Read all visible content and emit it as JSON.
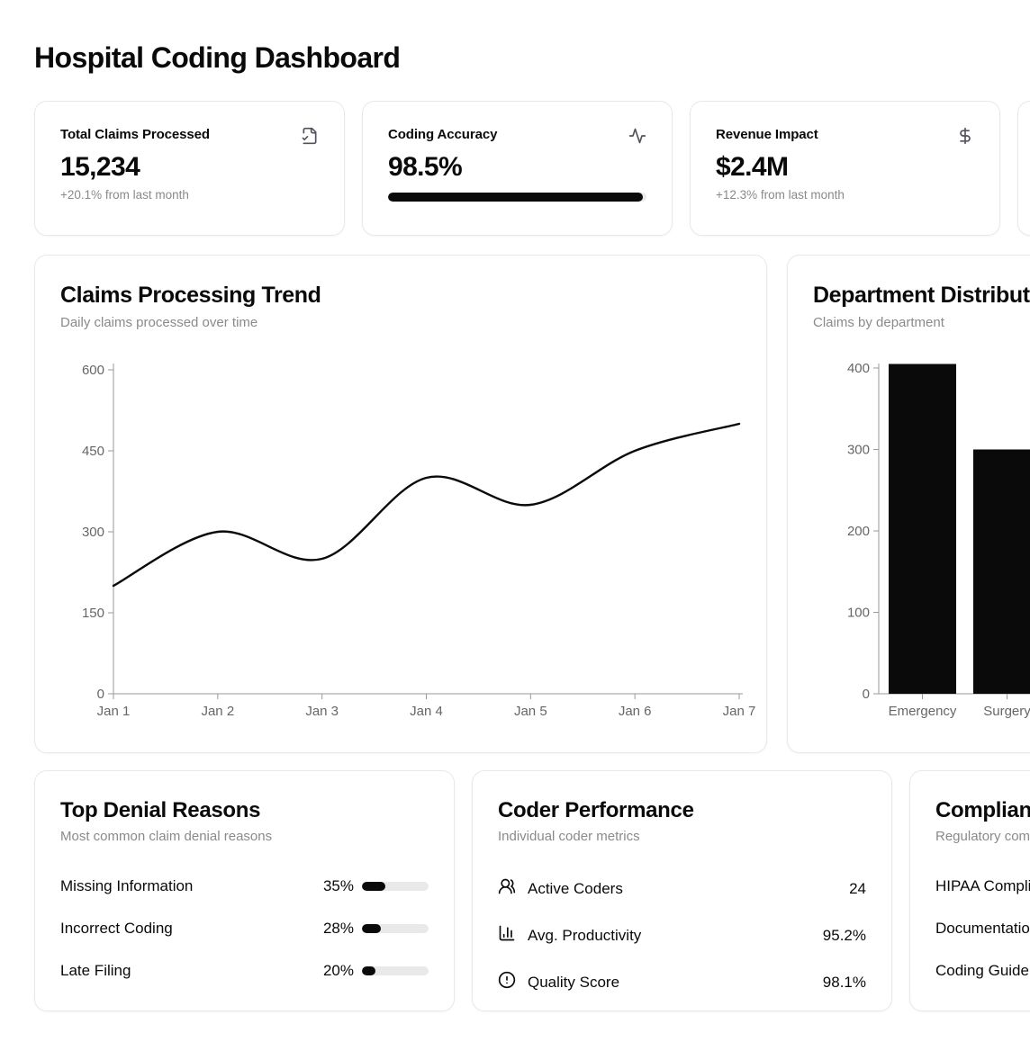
{
  "page": {
    "title": "Hospital Coding Dashboard"
  },
  "stats": [
    {
      "label": "Total Claims Processed",
      "icon": "file-check-icon",
      "value": "15,234",
      "note": "+20.1% from last month"
    },
    {
      "label": "Coding Accuracy",
      "icon": "activity-icon",
      "value": "98.5%",
      "progress_pct": 98.5
    },
    {
      "label": "Revenue Impact",
      "icon": "dollar-sign-icon",
      "value": "$2.4M",
      "note": "+12.3% from last month"
    },
    {
      "label": "",
      "icon": "",
      "value": "",
      "note": "",
      "clipped_at_right_edge": true
    }
  ],
  "chart_data": [
    {
      "type": "line",
      "title": "Claims Processing Trend",
      "subtitle": "Daily claims processed over time",
      "x": [
        "Jan 1",
        "Jan 2",
        "Jan 3",
        "Jan 4",
        "Jan 5",
        "Jan 6",
        "Jan 7"
      ],
      "values": [
        200,
        300,
        250,
        400,
        350,
        450,
        500
      ],
      "xlabel": "",
      "ylabel": "",
      "ylim": [
        0,
        610
      ],
      "yticks": [
        0,
        150,
        300,
        450,
        600
      ],
      "grid": false,
      "legend": false,
      "curve": "natural",
      "line_color": "#0a0a0a"
    },
    {
      "type": "bar",
      "title": "Department Distribution",
      "subtitle": "Claims by department",
      "categories": [
        "Emergency",
        "Surgery"
      ],
      "values": [
        405,
        300
      ],
      "xlabel": "",
      "ylabel": "",
      "ylim": [
        0,
        405
      ],
      "yticks": [
        0,
        100,
        200,
        300,
        400
      ],
      "grid": false,
      "legend": false,
      "bar_color": "#0a0a0a"
    }
  ],
  "denial": {
    "title": "Top Denial Reasons",
    "subtitle": "Most common claim denial reasons",
    "items": [
      {
        "label": "Missing Information",
        "value": "35%",
        "pct": 35
      },
      {
        "label": "Incorrect Coding",
        "value": "28%",
        "pct": 28
      },
      {
        "label": "Late Filing",
        "value": "20%",
        "pct": 20
      }
    ]
  },
  "coder": {
    "title": "Coder Performance",
    "subtitle": "Individual coder metrics",
    "items": [
      {
        "icon": "users-icon",
        "label": "Active Coders",
        "value": "24"
      },
      {
        "icon": "bar-chart-icon",
        "label": "Avg. Productivity",
        "value": "95.2%"
      },
      {
        "icon": "alert-circle-icon",
        "label": "Quality Score",
        "value": "98.1%"
      }
    ]
  },
  "compliance": {
    "title": "Compliance",
    "subtitle": "Regulatory compliance",
    "items": [
      {
        "label": "HIPAA Compliance"
      },
      {
        "label": "Documentation"
      },
      {
        "label": "Coding Guidelines"
      }
    ]
  },
  "colors": {
    "accent": "#0a0a0a",
    "muted_text": "#8a8a8a",
    "axis_line": "#9a9a9a",
    "axis_text": "#666666",
    "track": "#e9e9e9"
  }
}
